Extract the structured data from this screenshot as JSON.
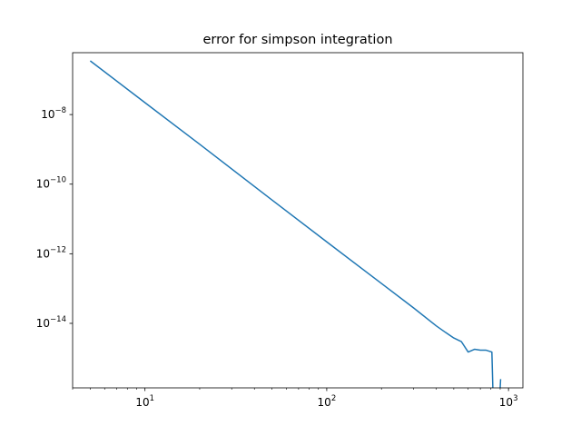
{
  "chart_data": {
    "type": "line",
    "title": "error for simpson integration",
    "xlabel": "",
    "ylabel": "",
    "xscale": "log",
    "yscale": "log",
    "xlim": [
      4,
      1200
    ],
    "ylim": [
      1.4e-16,
      6e-07
    ],
    "grid": false,
    "legend": "none",
    "x_ticks": [
      {
        "value": 10,
        "base": "10",
        "exp": "1"
      },
      {
        "value": 100,
        "base": "10",
        "exp": "2"
      },
      {
        "value": 1000,
        "base": "10",
        "exp": "3"
      }
    ],
    "y_ticks": [
      {
        "value": 1e-08,
        "base": "10",
        "exp": "−8"
      },
      {
        "value": 1e-10,
        "base": "10",
        "exp": "−10"
      },
      {
        "value": 1e-12,
        "base": "10",
        "exp": "−12"
      },
      {
        "value": 1e-14,
        "base": "10",
        "exp": "−14"
      }
    ],
    "series": [
      {
        "color": "#1f77b4",
        "segments": [
          [
            [
              5,
              3.5e-07
            ],
            [
              10,
              2.2e-08
            ],
            [
              20,
              1.4e-09
            ],
            [
              50,
              3.5e-11
            ],
            [
              100,
              2.2e-12
            ],
            [
              200,
              1.4e-13
            ],
            [
              300,
              2.8e-14
            ],
            [
              400,
              8.5e-15
            ],
            [
              450,
              5.5e-15
            ],
            [
              500,
              3.8e-15
            ],
            [
              550,
              3e-15
            ],
            [
              600,
              1.5e-15
            ],
            [
              650,
              1.8e-15
            ],
            [
              700,
              1.7e-15
            ],
            [
              750,
              1.7e-15
            ],
            [
              810,
              1.5e-15
            ],
            [
              820,
              1.4e-16
            ]
          ],
          [
            [
              900,
              1.4e-16
            ],
            [
              905,
              2.5e-16
            ]
          ]
        ]
      }
    ]
  }
}
